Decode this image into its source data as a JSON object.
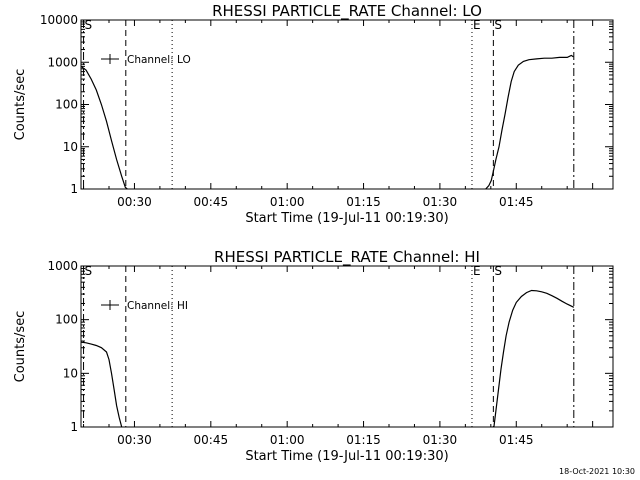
{
  "footer": "18-Oct-2021 10:30",
  "chart_data": [
    {
      "type": "line",
      "title": "RHESSI PARTICLE_RATE Channel: LO",
      "xlabel": "Start Time (19-Jul-11 00:19:30)",
      "ylabel": "Counts/sec",
      "y_scale": "log",
      "ylim": [
        1,
        10000
      ],
      "y_ticks": [
        "1",
        "10",
        "100",
        "1000",
        "10000"
      ],
      "x_unit": "minutes of day",
      "xlim": [
        19.5,
        124
      ],
      "x_ticks": [
        {
          "label": "00:30",
          "t": 30
        },
        {
          "label": "00:45",
          "t": 45
        },
        {
          "label": "01:00",
          "t": 60
        },
        {
          "label": "01:15",
          "t": 75
        },
        {
          "label": "01:30",
          "t": 90
        },
        {
          "label": "01:45",
          "t": 105
        }
      ],
      "legend": {
        "entries": [
          "Channel: LO"
        ],
        "placement": "top-left"
      },
      "markers": [
        {
          "label": "S",
          "t": 20.0,
          "style": "dashdot"
        },
        {
          "label": "",
          "t": 28.3,
          "style": "dashed"
        },
        {
          "label": "",
          "t": 37.4,
          "style": "dotted"
        },
        {
          "label": "E",
          "t": 96.3,
          "style": "dotted"
        },
        {
          "label": "S",
          "t": 100.5,
          "style": "dashed"
        },
        {
          "label": "",
          "t": 116.3,
          "style": "dashdot"
        }
      ],
      "series": [
        {
          "points": [
            [
              19.5,
              800
            ],
            [
              20.5,
              650
            ],
            [
              21.5,
              400
            ],
            [
              22.5,
              220
            ],
            [
              23.5,
              100
            ],
            [
              24.5,
              40
            ],
            [
              25.5,
              14
            ],
            [
              26.5,
              5
            ],
            [
              27.5,
              2
            ],
            [
              28.2,
              1.1
            ],
            [
              28.6,
              1
            ]
          ]
        },
        {
          "points": [
            [
              99.0,
              1
            ],
            [
              99.6,
              1.2
            ],
            [
              100.1,
              1.6
            ],
            [
              100.6,
              3
            ],
            [
              101.0,
              5
            ],
            [
              101.6,
              10
            ],
            [
              102.2,
              25
            ],
            [
              102.8,
              60
            ],
            [
              103.4,
              150
            ],
            [
              104.0,
              350
            ],
            [
              104.6,
              600
            ],
            [
              105.4,
              850
            ],
            [
              106.4,
              1050
            ],
            [
              107.5,
              1150
            ],
            [
              109.0,
              1200
            ],
            [
              110.5,
              1250
            ],
            [
              112.0,
              1250
            ],
            [
              113.5,
              1300
            ],
            [
              115.0,
              1300
            ],
            [
              115.8,
              1450
            ],
            [
              116.2,
              1350
            ]
          ]
        }
      ]
    },
    {
      "type": "line",
      "title": "RHESSI PARTICLE_RATE Channel: HI",
      "xlabel": "Start Time (19-Jul-11 00:19:30)",
      "ylabel": "Counts/sec",
      "y_scale": "log",
      "ylim": [
        1,
        1000
      ],
      "y_ticks": [
        "1",
        "10",
        "100",
        "1000"
      ],
      "x_unit": "minutes of day",
      "xlim": [
        19.5,
        124
      ],
      "x_ticks": [
        {
          "label": "00:30",
          "t": 30
        },
        {
          "label": "00:45",
          "t": 45
        },
        {
          "label": "01:00",
          "t": 60
        },
        {
          "label": "01:15",
          "t": 75
        },
        {
          "label": "01:30",
          "t": 90
        },
        {
          "label": "01:45",
          "t": 105
        }
      ],
      "legend": {
        "entries": [
          "Channel: HI"
        ],
        "placement": "top-left"
      },
      "markers": [
        {
          "label": "S",
          "t": 20.0,
          "style": "dashdot"
        },
        {
          "label": "",
          "t": 28.3,
          "style": "dashed"
        },
        {
          "label": "",
          "t": 37.4,
          "style": "dotted"
        },
        {
          "label": "E",
          "t": 96.3,
          "style": "dotted"
        },
        {
          "label": "S",
          "t": 100.5,
          "style": "dashed"
        },
        {
          "label": "",
          "t": 116.3,
          "style": "dashdot"
        }
      ],
      "series": [
        {
          "points": [
            [
              19.5,
              38
            ],
            [
              20.5,
              37
            ],
            [
              21.5,
              35
            ],
            [
              22.5,
              33
            ],
            [
              23.5,
              30
            ],
            [
              24.5,
              25
            ],
            [
              25.0,
              18
            ],
            [
              25.5,
              10
            ],
            [
              26.0,
              5
            ],
            [
              26.5,
              2.5
            ],
            [
              27.0,
              1.5
            ],
            [
              27.5,
              1
            ]
          ]
        },
        {
          "points": [
            [
              100.6,
              1
            ],
            [
              101.0,
              2
            ],
            [
              101.5,
              5
            ],
            [
              102.0,
              12
            ],
            [
              102.5,
              25
            ],
            [
              103.0,
              50
            ],
            [
              103.6,
              90
            ],
            [
              104.3,
              150
            ],
            [
              105.0,
              210
            ],
            [
              106.0,
              270
            ],
            [
              107.0,
              320
            ],
            [
              108.0,
              350
            ],
            [
              109.0,
              345
            ],
            [
              110.0,
              330
            ],
            [
              111.0,
              310
            ],
            [
              112.0,
              280
            ],
            [
              113.0,
              250
            ],
            [
              114.0,
              220
            ],
            [
              115.0,
              195
            ],
            [
              116.0,
              175
            ],
            [
              116.3,
              170
            ]
          ]
        }
      ]
    }
  ]
}
